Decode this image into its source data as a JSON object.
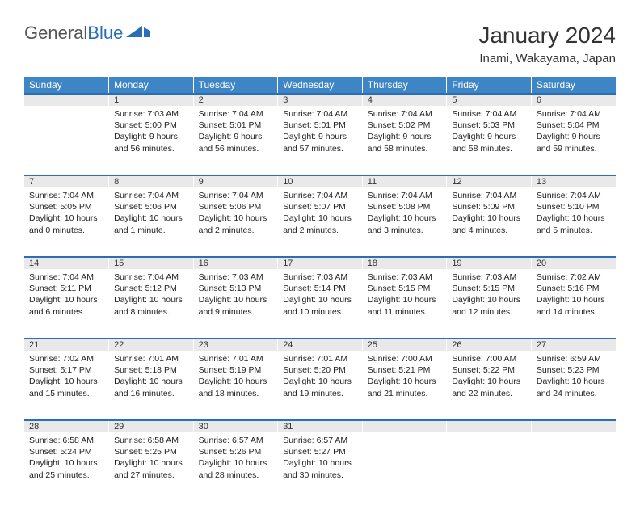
{
  "brand": {
    "part1": "General",
    "part2": "Blue"
  },
  "title": "January 2024",
  "location": "Inami, Wakayama, Japan",
  "day_headers": [
    "Sunday",
    "Monday",
    "Tuesday",
    "Wednesday",
    "Thursday",
    "Friday",
    "Saturday"
  ],
  "colors": {
    "header_bg": "#3e85c6",
    "header_text": "#ffffff",
    "daynum_bg": "#e9e9e9",
    "row_divider": "#2a6db8",
    "text": "#222222",
    "brand_gray": "#555555",
    "brand_blue": "#2a6db8"
  },
  "weeks": [
    {
      "nums": [
        "",
        "1",
        "2",
        "3",
        "4",
        "5",
        "6"
      ],
      "cells": [
        {
          "empty": true
        },
        {
          "sunrise": "7:03 AM",
          "sunset": "5:00 PM",
          "daylight": "9 hours and 56 minutes."
        },
        {
          "sunrise": "7:04 AM",
          "sunset": "5:01 PM",
          "daylight": "9 hours and 56 minutes."
        },
        {
          "sunrise": "7:04 AM",
          "sunset": "5:01 PM",
          "daylight": "9 hours and 57 minutes."
        },
        {
          "sunrise": "7:04 AM",
          "sunset": "5:02 PM",
          "daylight": "9 hours and 58 minutes."
        },
        {
          "sunrise": "7:04 AM",
          "sunset": "5:03 PM",
          "daylight": "9 hours and 58 minutes."
        },
        {
          "sunrise": "7:04 AM",
          "sunset": "5:04 PM",
          "daylight": "9 hours and 59 minutes."
        }
      ]
    },
    {
      "nums": [
        "7",
        "8",
        "9",
        "10",
        "11",
        "12",
        "13"
      ],
      "cells": [
        {
          "sunrise": "7:04 AM",
          "sunset": "5:05 PM",
          "daylight": "10 hours and 0 minutes."
        },
        {
          "sunrise": "7:04 AM",
          "sunset": "5:06 PM",
          "daylight": "10 hours and 1 minute."
        },
        {
          "sunrise": "7:04 AM",
          "sunset": "5:06 PM",
          "daylight": "10 hours and 2 minutes."
        },
        {
          "sunrise": "7:04 AM",
          "sunset": "5:07 PM",
          "daylight": "10 hours and 2 minutes."
        },
        {
          "sunrise": "7:04 AM",
          "sunset": "5:08 PM",
          "daylight": "10 hours and 3 minutes."
        },
        {
          "sunrise": "7:04 AM",
          "sunset": "5:09 PM",
          "daylight": "10 hours and 4 minutes."
        },
        {
          "sunrise": "7:04 AM",
          "sunset": "5:10 PM",
          "daylight": "10 hours and 5 minutes."
        }
      ]
    },
    {
      "nums": [
        "14",
        "15",
        "16",
        "17",
        "18",
        "19",
        "20"
      ],
      "cells": [
        {
          "sunrise": "7:04 AM",
          "sunset": "5:11 PM",
          "daylight": "10 hours and 6 minutes."
        },
        {
          "sunrise": "7:04 AM",
          "sunset": "5:12 PM",
          "daylight": "10 hours and 8 minutes."
        },
        {
          "sunrise": "7:03 AM",
          "sunset": "5:13 PM",
          "daylight": "10 hours and 9 minutes."
        },
        {
          "sunrise": "7:03 AM",
          "sunset": "5:14 PM",
          "daylight": "10 hours and 10 minutes."
        },
        {
          "sunrise": "7:03 AM",
          "sunset": "5:15 PM",
          "daylight": "10 hours and 11 minutes."
        },
        {
          "sunrise": "7:03 AM",
          "sunset": "5:15 PM",
          "daylight": "10 hours and 12 minutes."
        },
        {
          "sunrise": "7:02 AM",
          "sunset": "5:16 PM",
          "daylight": "10 hours and 14 minutes."
        }
      ]
    },
    {
      "nums": [
        "21",
        "22",
        "23",
        "24",
        "25",
        "26",
        "27"
      ],
      "cells": [
        {
          "sunrise": "7:02 AM",
          "sunset": "5:17 PM",
          "daylight": "10 hours and 15 minutes."
        },
        {
          "sunrise": "7:01 AM",
          "sunset": "5:18 PM",
          "daylight": "10 hours and 16 minutes."
        },
        {
          "sunrise": "7:01 AM",
          "sunset": "5:19 PM",
          "daylight": "10 hours and 18 minutes."
        },
        {
          "sunrise": "7:01 AM",
          "sunset": "5:20 PM",
          "daylight": "10 hours and 19 minutes."
        },
        {
          "sunrise": "7:00 AM",
          "sunset": "5:21 PM",
          "daylight": "10 hours and 21 minutes."
        },
        {
          "sunrise": "7:00 AM",
          "sunset": "5:22 PM",
          "daylight": "10 hours and 22 minutes."
        },
        {
          "sunrise": "6:59 AM",
          "sunset": "5:23 PM",
          "daylight": "10 hours and 24 minutes."
        }
      ]
    },
    {
      "nums": [
        "28",
        "29",
        "30",
        "31",
        "",
        "",
        ""
      ],
      "cells": [
        {
          "sunrise": "6:58 AM",
          "sunset": "5:24 PM",
          "daylight": "10 hours and 25 minutes."
        },
        {
          "sunrise": "6:58 AM",
          "sunset": "5:25 PM",
          "daylight": "10 hours and 27 minutes."
        },
        {
          "sunrise": "6:57 AM",
          "sunset": "5:26 PM",
          "daylight": "10 hours and 28 minutes."
        },
        {
          "sunrise": "6:57 AM",
          "sunset": "5:27 PM",
          "daylight": "10 hours and 30 minutes."
        },
        {
          "empty": true
        },
        {
          "empty": true
        },
        {
          "empty": true
        }
      ]
    }
  ],
  "labels": {
    "sunrise": "Sunrise:",
    "sunset": "Sunset:",
    "daylight": "Daylight:"
  }
}
